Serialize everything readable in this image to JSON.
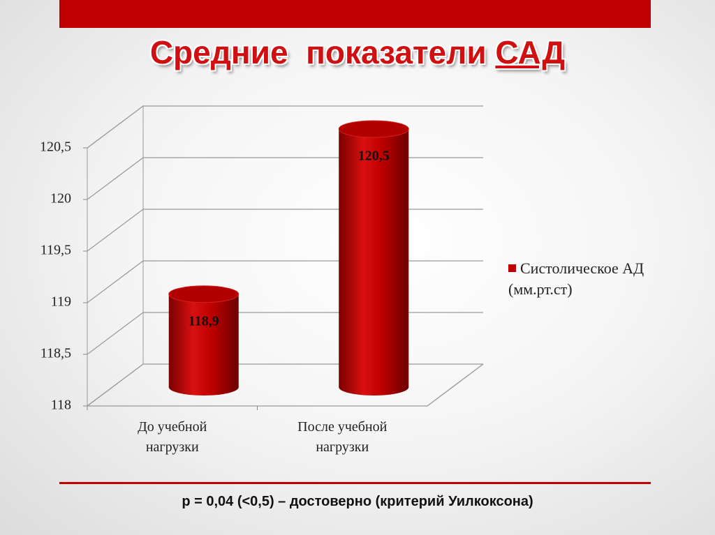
{
  "chart_data": {
    "type": "bar",
    "title": "Средние  показатели",
    "title_underlined": "САД",
    "categories": [
      "До учебной нагрузки",
      "После учебной нагрузки"
    ],
    "series": [
      {
        "name": "Систолическое АД (мм.рт.ст)",
        "color": "#c00000",
        "values": [
          118.9,
          120.5
        ],
        "value_labels": [
          "118,9",
          "120,5"
        ]
      }
    ],
    "ylim": [
      118,
      120.5
    ],
    "yticks": [
      118,
      {
        "value": 118.5,
        "label": "118,5"
      },
      119,
      {
        "value": 119.5,
        "label": "119,5"
      },
      120,
      {
        "value": 120.5,
        "label": "120,5"
      }
    ],
    "grid": true,
    "legend": "right",
    "footnote": "p = 0,04 (<0,5) – достоверно (критерий Уилкоксона)"
  }
}
